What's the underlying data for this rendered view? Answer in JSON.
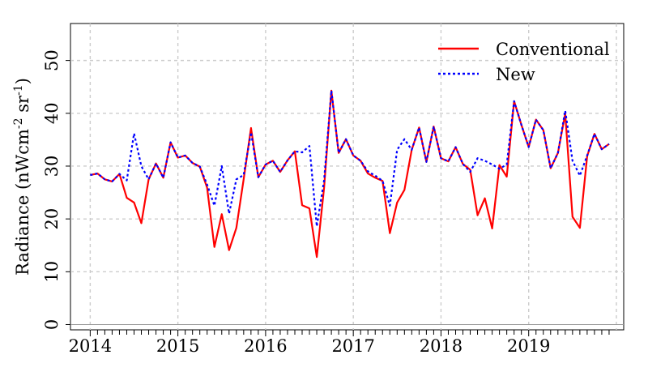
{
  "chart_data": {
    "type": "line",
    "ylabel_main": "Radiance (nWcm",
    "ylabel_exp1": "-2",
    "ylabel_mid": " sr",
    "ylabel_exp2": "-1",
    "ylabel_end": ")",
    "xlabel": "",
    "x_tick_labels": [
      "2014",
      "2015",
      "2016",
      "2017",
      "2018",
      "2019"
    ],
    "x_tick_values": [
      0,
      12,
      24,
      36,
      48,
      60
    ],
    "y_ticks": [
      0,
      10,
      20,
      30,
      40,
      50
    ],
    "ylim": [
      -1,
      57
    ],
    "xlim": [
      -2.7,
      73
    ],
    "grid": true,
    "legend_position": "top-right",
    "series": [
      {
        "name": "Conventional",
        "color": "#ff0000",
        "style": "solid",
        "values": [
          28.3,
          28.6,
          27.5,
          27.1,
          28.5,
          24.0,
          23.1,
          19.2,
          27.5,
          30.5,
          27.8,
          34.5,
          31.6,
          32.0,
          30.6,
          29.9,
          25.9,
          14.7,
          20.9,
          14.1,
          18.3,
          27.5,
          37.2,
          27.9,
          30.3,
          31.0,
          28.9,
          31.1,
          32.8,
          22.6,
          22.0,
          12.8,
          25.9,
          44.3,
          32.5,
          35.1,
          32.0,
          31.0,
          28.6,
          27.8,
          27.2,
          17.3,
          23.1,
          25.5,
          33.1,
          37.3,
          30.8,
          37.5,
          31.5,
          30.9,
          33.6,
          30.4,
          29.3,
          20.7,
          23.9,
          18.2,
          30.2,
          28.0,
          42.3,
          37.8,
          33.6,
          38.8,
          36.8,
          29.6,
          32.5,
          39.9,
          20.4,
          18.3,
          31.9,
          36.1,
          33.2,
          34.2
        ]
      },
      {
        "name": "New",
        "color": "#0000ff",
        "style": "dotted",
        "values": [
          28.3,
          28.6,
          27.5,
          27.1,
          28.5,
          27.3,
          36.2,
          30.0,
          27.5,
          30.5,
          27.8,
          34.5,
          31.6,
          32.0,
          30.6,
          29.9,
          26.5,
          22.5,
          30.0,
          21.0,
          27.5,
          28.3,
          36.4,
          27.9,
          30.3,
          31.0,
          28.9,
          31.1,
          32.8,
          32.6,
          33.8,
          18.6,
          27.3,
          44.3,
          32.5,
          35.1,
          32.0,
          31.0,
          29.0,
          28.2,
          27.2,
          22.5,
          33.1,
          35.1,
          33.1,
          37.3,
          30.8,
          37.5,
          31.5,
          30.9,
          33.6,
          30.4,
          28.9,
          31.5,
          31.0,
          30.3,
          29.5,
          30.3,
          42.3,
          37.8,
          33.6,
          38.8,
          36.8,
          29.6,
          32.5,
          40.5,
          31.0,
          28.2,
          32.0,
          36.1,
          33.2,
          34.2
        ]
      }
    ]
  }
}
